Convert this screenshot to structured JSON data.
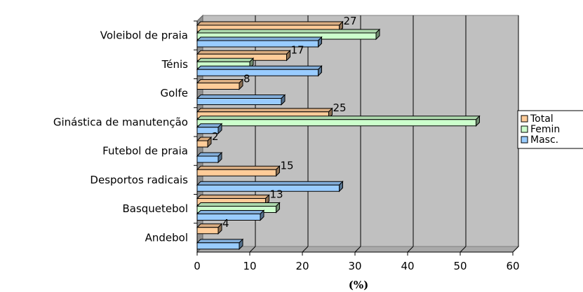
{
  "chart_data": {
    "type": "bar",
    "orientation": "horizontal",
    "three_d": true,
    "categories": [
      "Voleibol de praia",
      "Ténis",
      "Golfe",
      "Ginástica de manutenção",
      "Futebol de praia",
      "Desportos radicais",
      "Basquetebol",
      "Andebol"
    ],
    "series": [
      {
        "name": "Total",
        "color": "#ffcc99",
        "values": [
          27,
          17,
          8,
          25,
          2,
          15,
          13,
          4
        ],
        "labels": [
          "27",
          "17",
          "8",
          "25",
          "2",
          "15",
          "13",
          "4"
        ]
      },
      {
        "name": "Femin",
        "color": "#ccffcc",
        "values": [
          34,
          10,
          0,
          53,
          0,
          0,
          15,
          0
        ]
      },
      {
        "name": "Masc.",
        "color": "#99ccff",
        "values": [
          23,
          23,
          16,
          4,
          4,
          27,
          12,
          8
        ]
      }
    ],
    "xticks": [
      "0",
      "10",
      "20",
      "30",
      "40",
      "50",
      "60"
    ],
    "xlim": [
      0,
      60
    ],
    "xlabel": "(%)",
    "grid": true,
    "legend_position": "right"
  }
}
